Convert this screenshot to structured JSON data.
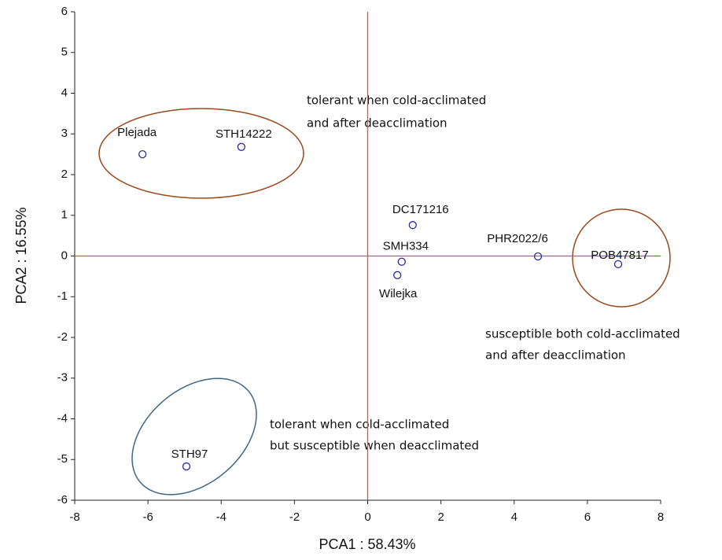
{
  "chart_data": {
    "type": "scatter",
    "xlabel": "PCA1 : 58.43%",
    "ylabel": "PCA2 : 16.55%",
    "labels": [
      "Plejada",
      "STH14222",
      "DC171216",
      "SMH334",
      "Wilejka",
      "PHR2022/6",
      "POB47817",
      "STH97"
    ],
    "x": [
      -6.15,
      -3.45,
      1.23,
      0.93,
      0.81,
      4.65,
      6.84,
      -4.95
    ],
    "values": [
      2.5,
      2.68,
      0.76,
      -0.14,
      -0.47,
      -0.01,
      -0.2,
      -5.17
    ],
    "color": "#2b2b9a",
    "xlim": [
      -8,
      8
    ],
    "xticks": [
      -8,
      -6,
      -4,
      -2,
      0,
      2,
      4,
      6,
      8
    ],
    "ylim": [
      -6,
      6
    ],
    "yticks": [
      -6,
      -5,
      -4,
      -3,
      -2,
      -1,
      0,
      1,
      2,
      3,
      4,
      5,
      6
    ],
    "annotations": [
      [
        "tolerant when cold-acclimated",
        "and after deacclimation"
      ],
      [
        "susceptible both cold-acclimated",
        "and after deacclimation"
      ],
      [
        "tolerant when cold-acclimated",
        "but susceptible when deacclimated"
      ]
    ]
  }
}
